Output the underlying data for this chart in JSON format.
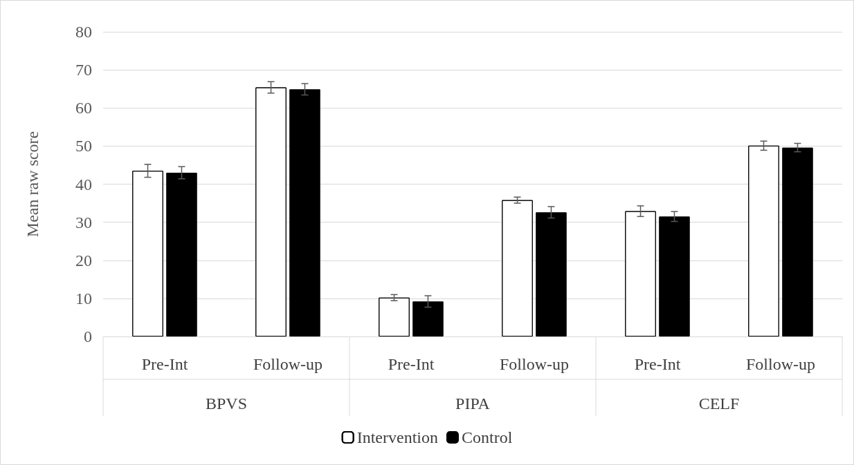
{
  "chart_data": {
    "type": "bar",
    "ylabel": "Mean raw score",
    "categories": [
      "Pre-Int",
      "Follow-up",
      "Pre-Int",
      "Follow-up",
      "Pre-Int",
      "Follow-up"
    ],
    "annotations": [
      "BPVS",
      "PIPA",
      "CELF"
    ],
    "series": [
      {
        "name": "Intervention",
        "color": "#ffffff",
        "values": [
          43.5,
          65.4,
          10.2,
          35.8,
          32.9,
          50.1
        ],
        "errors": [
          1.7,
          1.5,
          0.8,
          0.8,
          1.4,
          1.2
        ]
      },
      {
        "name": "Control",
        "color": "#000000",
        "values": [
          43.0,
          64.9,
          9.2,
          32.6,
          31.5,
          49.6
        ],
        "errors": [
          1.6,
          1.5,
          1.5,
          1.5,
          1.3,
          1.1
        ]
      }
    ],
    "ylim": [
      0,
      80
    ],
    "yticks": [
      0,
      10,
      20,
      30,
      40,
      50,
      60,
      70,
      80
    ],
    "grid": "y",
    "legend": "bottom"
  }
}
